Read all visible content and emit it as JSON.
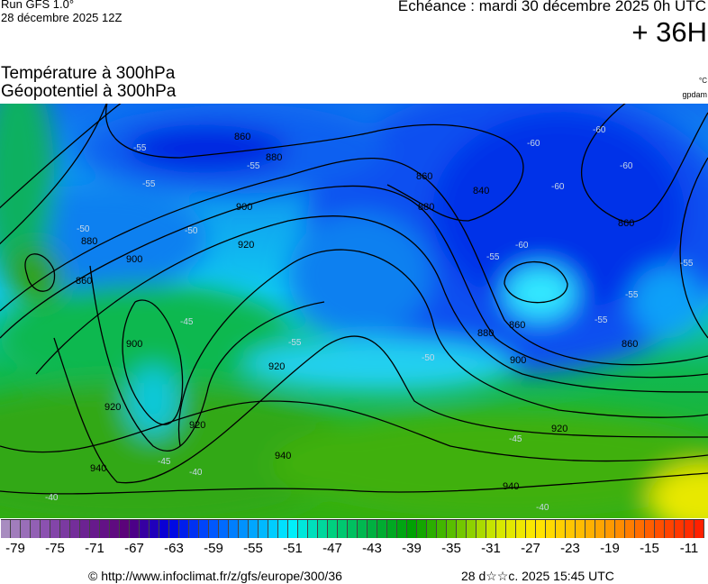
{
  "header": {
    "run": "Run GFS 1.0°",
    "run_date": "28 décembre 2025 12Z",
    "valid": "Echéance : mardi 30 décembre 2025 0h UTC",
    "lead": "+ 36H",
    "title_temperature": "Température à 300hPa",
    "title_geopotential": "Géopotentiel à 300hPa",
    "unit_temperature": "°C",
    "unit_geopotential": "gpdam"
  },
  "map": {
    "geopotential_labels": [
      "860",
      "880",
      "900",
      "920",
      "940",
      "840",
      "860",
      "880",
      "900",
      "920",
      "940",
      "860",
      "880",
      "900",
      "920",
      "860",
      "880",
      "900",
      "920",
      "940",
      "840",
      "860",
      "860",
      "900",
      "920"
    ],
    "temperature_labels": [
      "-55",
      "-55",
      "-55",
      "-50",
      "-50",
      "-45",
      "-45",
      "-40",
      "-40",
      "-60",
      "-60",
      "-60",
      "-60",
      "-55",
      "-55",
      "-55",
      "-55",
      "-50",
      "-45",
      "-40",
      "-60",
      "-55"
    ]
  },
  "colorbar": {
    "min": -80,
    "max": -10,
    "step": 1,
    "anchors": [
      "#a88cc0",
      "#8a4fb0",
      "#6a2090",
      "#5a0078",
      "#0000e0",
      "#0050ff",
      "#00a0ff",
      "#00f0ff",
      "#00d080",
      "#00b040",
      "#00a000",
      "#60c000",
      "#d0e800",
      "#ffe800",
      "#ffc000",
      "#ff9000",
      "#ff5000",
      "#ff2000"
    ],
    "tick_labels": [
      "-79",
      "-75",
      "-71",
      "-67",
      "-63",
      "-59",
      "-55",
      "-51",
      "-47",
      "-43",
      "-39",
      "-35",
      "-31",
      "-27",
      "-23",
      "-19",
      "-15",
      "-11"
    ]
  },
  "footer": {
    "credit": "© http://www.infoclimat.fr/z/gfs/europe/300/36",
    "generated": "28 d☆☆c. 2025 15:45 UTC"
  }
}
